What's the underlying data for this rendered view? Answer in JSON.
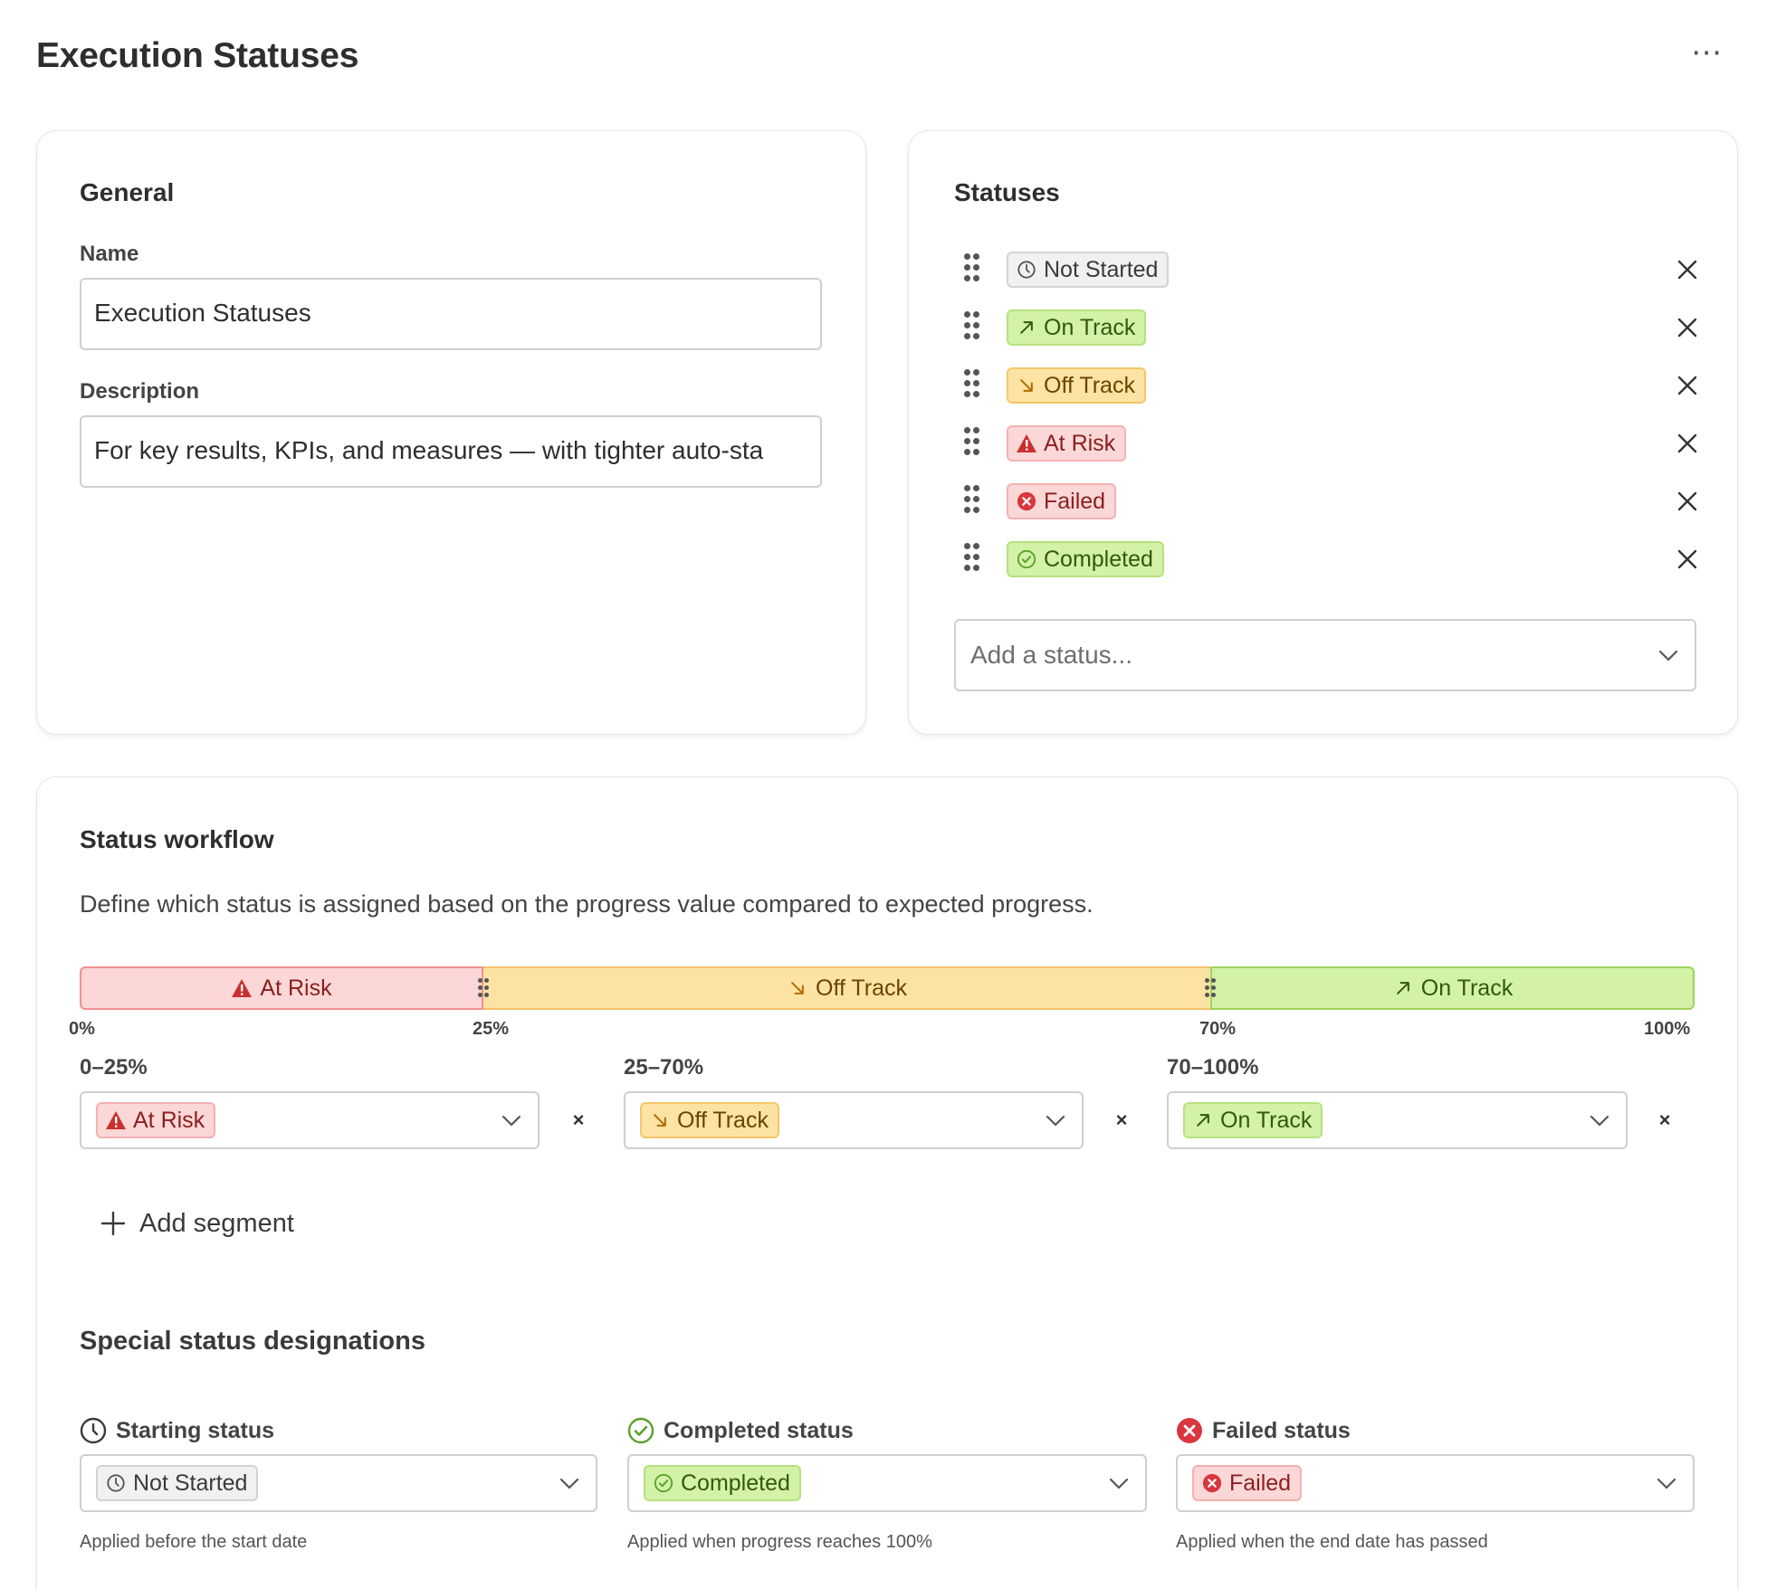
{
  "page": {
    "title": "Execution Statuses",
    "more_label": "⋯"
  },
  "general": {
    "title": "General",
    "name_label": "Name",
    "name_value": "Execution Statuses",
    "description_label": "Description",
    "description_value": "For key results, KPIs, and measures — with tighter auto-sta"
  },
  "statuses": {
    "title": "Statuses",
    "items": [
      {
        "label": "Not Started",
        "icon": "clock-icon",
        "color": "gray"
      },
      {
        "label": "On Track",
        "icon": "arrow-up-right-icon",
        "color": "green"
      },
      {
        "label": "Off Track",
        "icon": "arrow-down-right-icon",
        "color": "orange"
      },
      {
        "label": "At Risk",
        "icon": "warning-triangle-icon",
        "color": "red"
      },
      {
        "label": "Failed",
        "icon": "x-circle-icon",
        "color": "red"
      },
      {
        "label": "Completed",
        "icon": "check-circle-icon",
        "color": "green"
      }
    ],
    "add_placeholder": "Add a status..."
  },
  "workflow": {
    "title": "Status workflow",
    "description": "Define which status is assigned based on the progress value compared to expected progress.",
    "segments": [
      {
        "status": "At Risk",
        "range": "0–25%",
        "start": 0,
        "end": 25
      },
      {
        "status": "Off Track",
        "range": "25–70%",
        "start": 25,
        "end": 70
      },
      {
        "status": "On Track",
        "range": "70–100%",
        "start": 70,
        "end": 100
      }
    ],
    "ticks": [
      "0%",
      "25%",
      "70%",
      "100%"
    ],
    "remove_label": "×",
    "add_segment_label": "Add segment"
  },
  "special": {
    "title": "Special status designations",
    "starting": {
      "label": "Starting status",
      "value": "Not Started",
      "helper": "Applied before the start date"
    },
    "completed": {
      "label": "Completed status",
      "value": "Completed",
      "helper": "Applied when progress reaches 100%"
    },
    "failed": {
      "label": "Failed status",
      "value": "Failed",
      "helper": "Applied when the end date has passed"
    }
  },
  "colors": {
    "gray": "#f1f1f1",
    "green": "#d3f1a7",
    "orange": "#fce3a3",
    "red": "#fcd7d7",
    "failed_icon": "#d9363e",
    "at_risk_icon": "#c8302f",
    "completed_icon": "#5aa02c"
  }
}
